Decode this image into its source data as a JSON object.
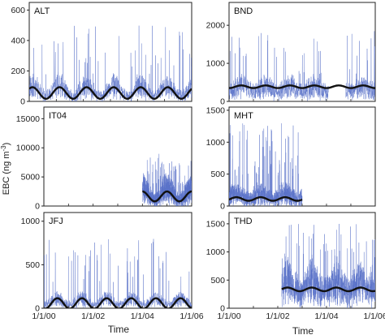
{
  "figure": {
    "ylabel_base": "EBC (ng m",
    "ylabel_exp": "-3",
    "ylabel_close": ")",
    "xlabel_left": "Time",
    "xlabel_right": "Time"
  },
  "colors": {
    "raw": "#5a72c8",
    "fit": "#111111",
    "frame": "#222222"
  },
  "chart_data": [
    {
      "type": "line",
      "station": "ALT",
      "xlim": [
        "2000-01-01",
        "2006-01-01"
      ],
      "ylim": [
        0,
        650
      ],
      "yticks": [
        0,
        200,
        400,
        600
      ],
      "xticks": [],
      "xticklabels": [],
      "data_range": [
        "2000-01-01",
        "2006-01-01"
      ],
      "series": [
        {
          "type": "raw",
          "base": 70,
          "amp": 45,
          "peak": 500,
          "peak_prob": 0.05,
          "season": 1
        },
        {
          "type": "fit",
          "mean": 55,
          "amp": 38,
          "phase": 0.12
        }
      ]
    },
    {
      "type": "line",
      "station": "BND",
      "xlim": [
        "2000-01-01",
        "2006-01-01"
      ],
      "ylim": [
        0,
        2600
      ],
      "yticks": [
        0,
        1000,
        2000
      ],
      "xticks": [],
      "xticklabels": [],
      "data_range": [
        "2000-01-01",
        "2006-01-01"
      ],
      "gaps": [
        [
          "2004-02-01",
          "2004-10-15"
        ]
      ],
      "series": [
        {
          "type": "raw",
          "base": 320,
          "amp": 200,
          "peak": 1900,
          "peak_prob": 0.05,
          "season": 0.4
        },
        {
          "type": "fit",
          "mean": 385,
          "amp": 35,
          "phase": 0.5
        }
      ]
    },
    {
      "type": "line",
      "station": "IT04",
      "xlim": [
        "2000-01-01",
        "2006-01-01"
      ],
      "ylim": [
        0,
        17000
      ],
      "yticks": [
        0,
        5000,
        10000,
        15000
      ],
      "xticks": [],
      "xticklabels": [],
      "data_range": [
        "2004-01-01",
        "2006-01-01"
      ],
      "series": [
        {
          "type": "raw",
          "base": 2000,
          "amp": 1600,
          "peak": 9000,
          "peak_prob": 0.05,
          "season": 1
        },
        {
          "type": "fit",
          "mean": 1650,
          "amp": 850,
          "phase": 0.0
        }
      ]
    },
    {
      "type": "line",
      "station": "MHT",
      "xlim": [
        "2000-01-01",
        "2006-01-01"
      ],
      "ylim": [
        0,
        1550
      ],
      "yticks": [
        0,
        500,
        1000,
        1500
      ],
      "xticks": [],
      "xticklabels": [],
      "data_range": [
        "2000-01-01",
        "2003-01-01"
      ],
      "series": [
        {
          "type": "raw",
          "base": 150,
          "amp": 150,
          "peak": 1300,
          "peak_prob": 0.05,
          "season": 0.6
        },
        {
          "type": "fit",
          "mean": 110,
          "amp": 28,
          "phase": 0.3
        }
      ]
    },
    {
      "type": "line",
      "station": "JFJ",
      "xlim": [
        "2000-01-01",
        "2006-01-01"
      ],
      "ylim": [
        0,
        1100
      ],
      "yticks": [
        0,
        500,
        1000
      ],
      "xticks": [
        "2000-01-01",
        "2002-01-01",
        "2004-01-01",
        "2006-01-01"
      ],
      "xticklabels": [
        "1/1/00",
        "1/1/02",
        "1/1/04",
        "1/1/06"
      ],
      "data_range": [
        "2000-01-01",
        "2006-01-01"
      ],
      "series": [
        {
          "type": "raw",
          "base": 75,
          "amp": 60,
          "peak": 800,
          "peak_prob": 0.05,
          "season": 1
        },
        {
          "type": "fit",
          "mean": 55,
          "amp": 60,
          "phase": 0.55
        }
      ]
    },
    {
      "type": "line",
      "station": "THD",
      "xlim": [
        "2000-01-01",
        "2006-01-01"
      ],
      "ylim": [
        0,
        1700
      ],
      "yticks": [
        0,
        500,
        1000,
        1500
      ],
      "xticks": [
        "2000-01-01",
        "2002-01-01",
        "2004-01-01",
        "2006-01-01"
      ],
      "xticklabels": [
        "1/1/00",
        "1/1/02",
        "1/1/04",
        "1/1/06"
      ],
      "data_range": [
        "2002-03-01",
        "2006-01-01"
      ],
      "series": [
        {
          "type": "raw",
          "base": 380,
          "amp": 250,
          "peak": 1500,
          "peak_prob": 0.06,
          "season": 0.5
        },
        {
          "type": "fit",
          "mean": 335,
          "amp": 32,
          "phase": 0.4
        }
      ]
    }
  ]
}
